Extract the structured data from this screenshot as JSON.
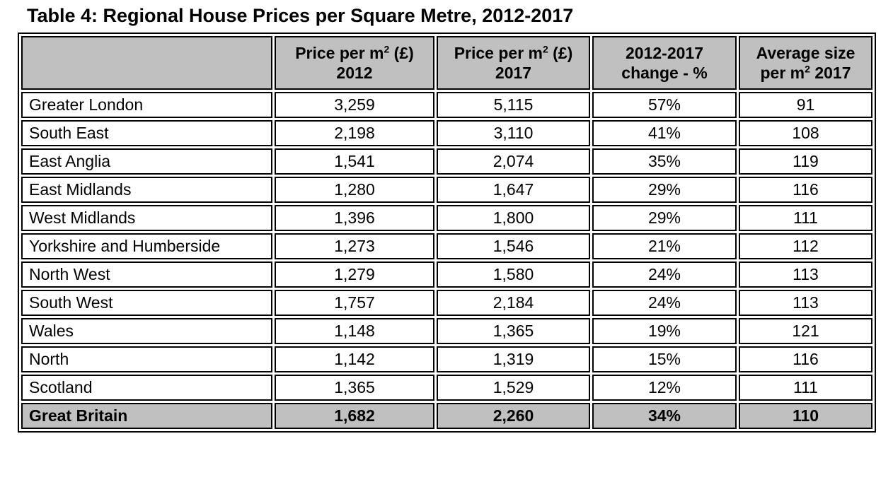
{
  "title": "Table 4: Regional House Prices per Square Metre, 2012-2017",
  "colors": {
    "header_bg": "#c0c0c0",
    "total_row_bg": "#c0c0c0",
    "border": "#000000",
    "text": "#000000",
    "page_bg": "#ffffff"
  },
  "table": {
    "headers": [
      {
        "label": ""
      },
      {
        "pre": "Price per m",
        "sup": "2",
        "post": " (£)",
        "line2": "2012"
      },
      {
        "pre": "Price per m",
        "sup": "2",
        "post": " (£)",
        "line2": "2017"
      },
      {
        "line1": "2012-2017",
        "line2": "change - %"
      },
      {
        "line1": "Average size",
        "line2_pre": "per m",
        "sup": "2",
        "line2_post": " 2017"
      }
    ],
    "rows": [
      {
        "region": "Greater London",
        "price_2012": "3,259",
        "price_2017": "5,115",
        "change": "57%",
        "avg_size": "91"
      },
      {
        "region": "South East",
        "price_2012": "2,198",
        "price_2017": "3,110",
        "change": "41%",
        "avg_size": "108"
      },
      {
        "region": "East Anglia",
        "price_2012": "1,541",
        "price_2017": "2,074",
        "change": "35%",
        "avg_size": "119"
      },
      {
        "region": "East Midlands",
        "price_2012": "1,280",
        "price_2017": "1,647",
        "change": "29%",
        "avg_size": "116"
      },
      {
        "region": "West Midlands",
        "price_2012": "1,396",
        "price_2017": "1,800",
        "change": "29%",
        "avg_size": "111"
      },
      {
        "region": "Yorkshire and Humberside",
        "price_2012": "1,273",
        "price_2017": "1,546",
        "change": "21%",
        "avg_size": "112"
      },
      {
        "region": "North West",
        "price_2012": "1,279",
        "price_2017": "1,580",
        "change": "24%",
        "avg_size": "113"
      },
      {
        "region": "South West",
        "price_2012": "1,757",
        "price_2017": "2,184",
        "change": "24%",
        "avg_size": "113"
      },
      {
        "region": "Wales",
        "price_2012": "1,148",
        "price_2017": "1,365",
        "change": "19%",
        "avg_size": "121"
      },
      {
        "region": "North",
        "price_2012": "1,142",
        "price_2017": "1,319",
        "change": "15%",
        "avg_size": "116"
      },
      {
        "region": "Scotland",
        "price_2012": "1,365",
        "price_2017": "1,529",
        "change": "12%",
        "avg_size": "111"
      }
    ],
    "total_row": {
      "region": "Great Britain",
      "price_2012": "1,682",
      "price_2017": "2,260",
      "change": "34%",
      "avg_size": "110"
    }
  }
}
